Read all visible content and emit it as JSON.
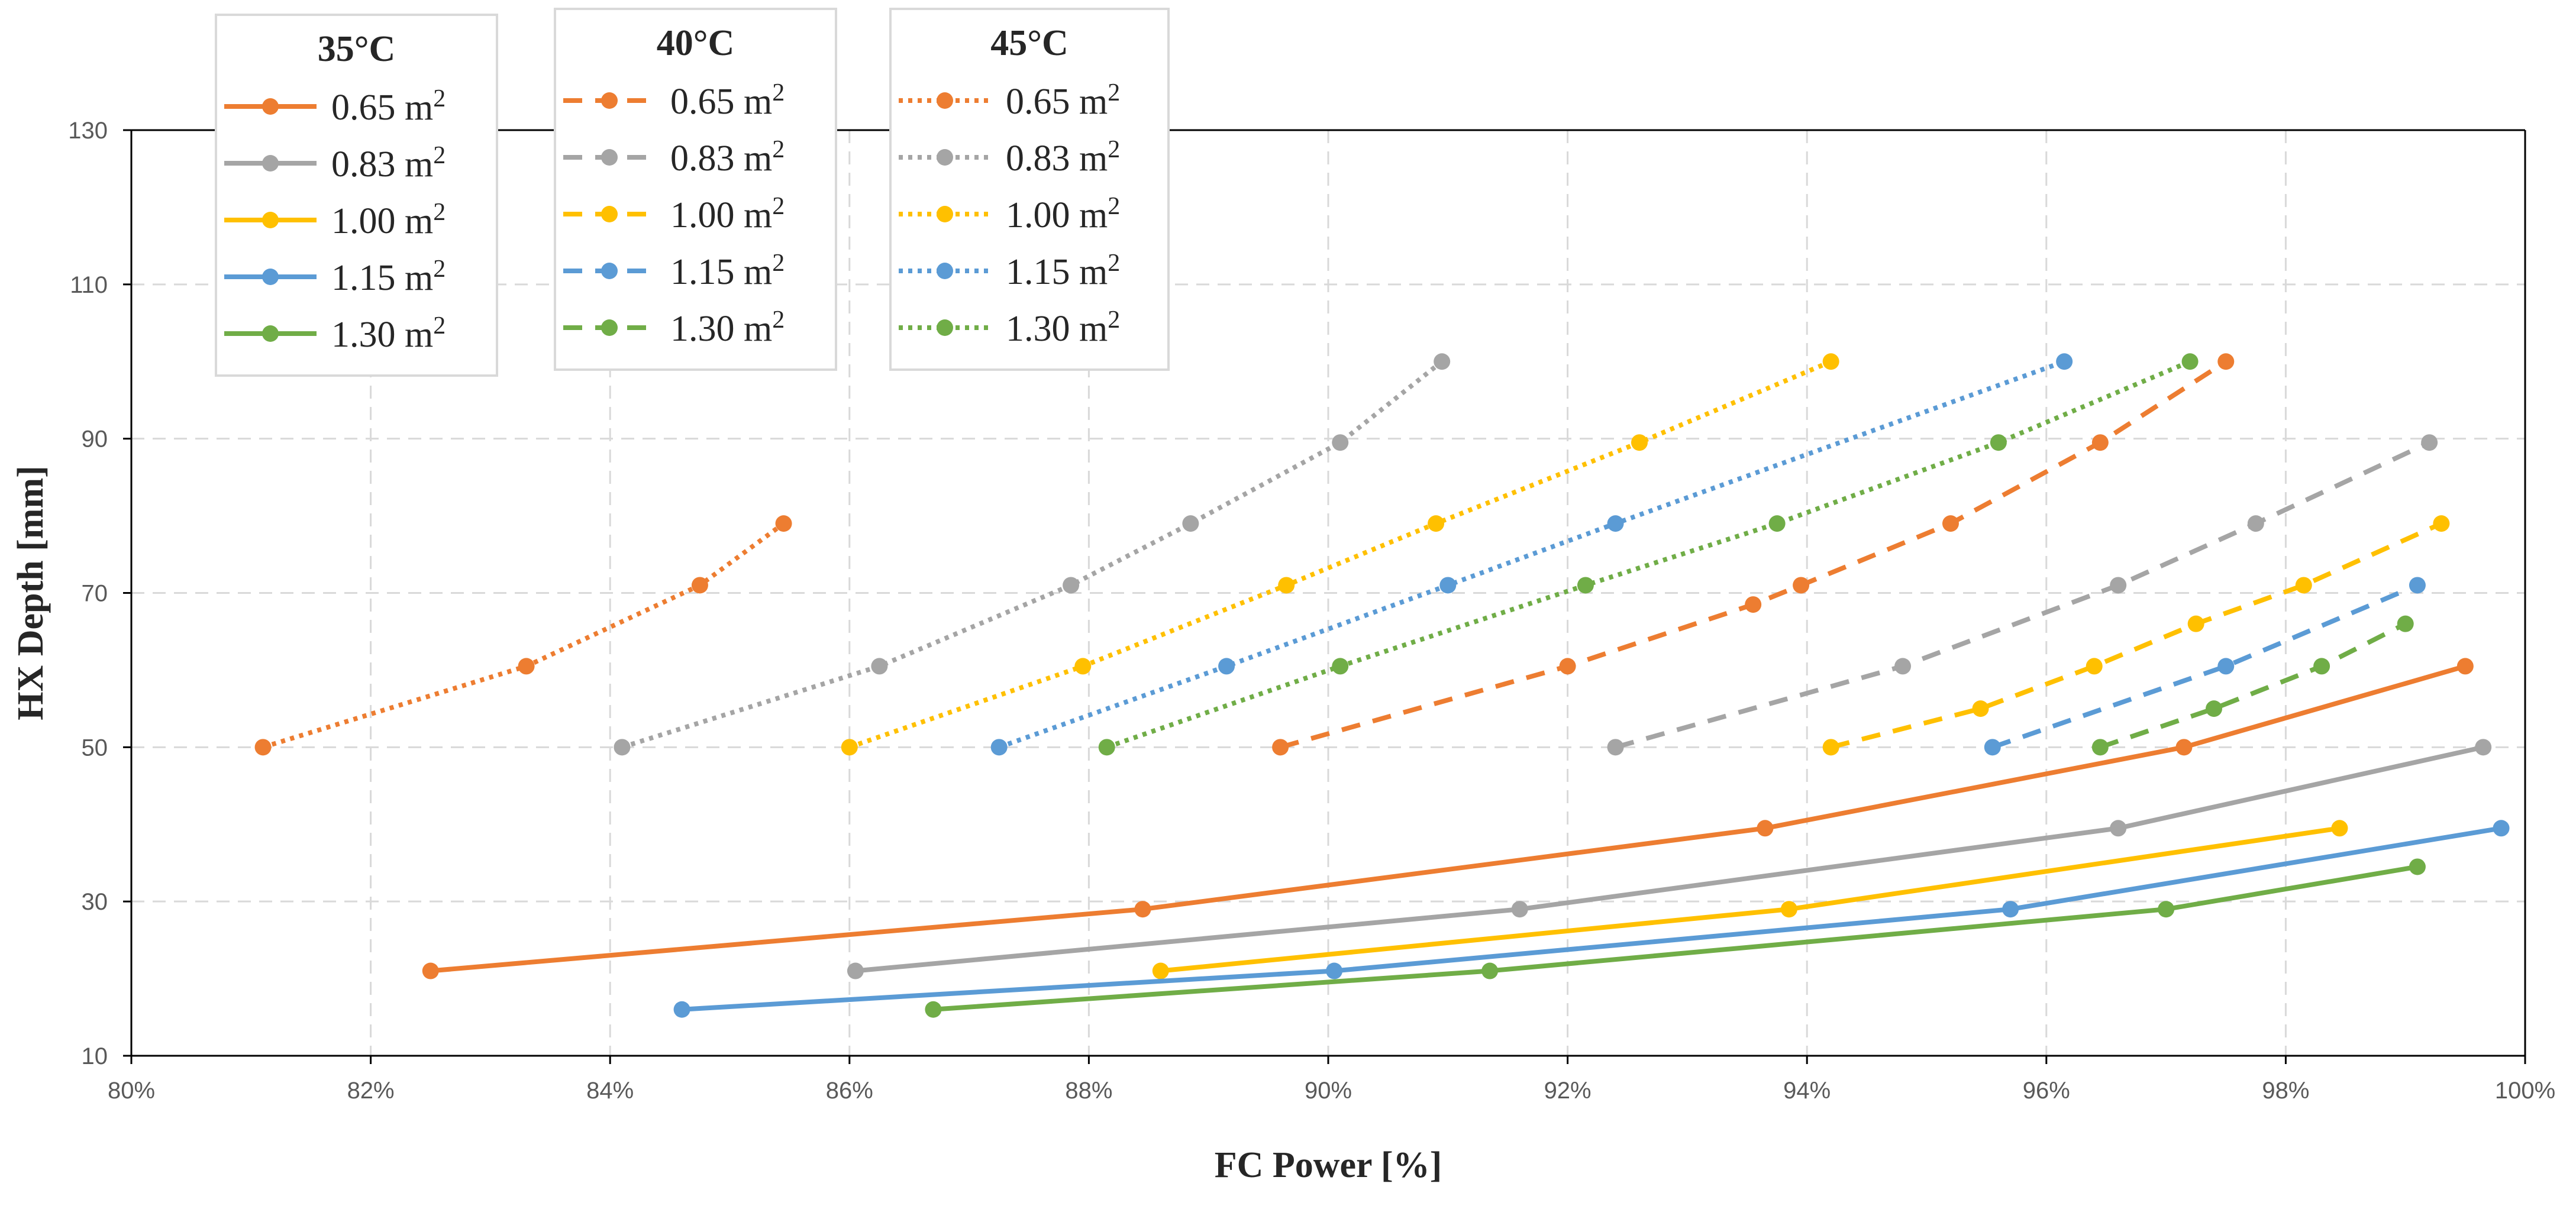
{
  "chart_data": {
    "type": "line",
    "title": "",
    "xlabel": "FC Power [%]",
    "ylabel": "HX Depth [mm]",
    "xlim": [
      80,
      100
    ],
    "ylim": [
      10,
      130
    ],
    "x_ticks": [
      80,
      82,
      84,
      86,
      88,
      90,
      92,
      94,
      96,
      98,
      100
    ],
    "x_tick_labels": [
      "80%",
      "82%",
      "84%",
      "86%",
      "88%",
      "90%",
      "92%",
      "94%",
      "96%",
      "98%",
      "100%"
    ],
    "y_ticks": [
      10,
      30,
      50,
      70,
      90,
      110,
      130
    ],
    "y_tick_labels": [
      "10",
      "30",
      "50",
      "70",
      "90",
      "110",
      "130"
    ],
    "grid": true,
    "legend_placement": "top-left",
    "colors": {
      "0.65": "#ED7D31",
      "0.83": "#A5A5A5",
      "1.00": "#FFC000",
      "1.15": "#5B9BD5",
      "1.30": "#70AD47"
    },
    "groups": [
      {
        "title": "35°C",
        "dash": "solid",
        "series": [
          {
            "name": "0.65 m",
            "sup": "2",
            "area": "0.65",
            "points": [
              [
                82.5,
                21
              ],
              [
                88.45,
                29
              ],
              [
                93.65,
                39.5
              ],
              [
                97.15,
                50
              ],
              [
                99.5,
                60.5
              ]
            ]
          },
          {
            "name": "0.83 m",
            "sup": "2",
            "area": "0.83",
            "points": [
              [
                86.05,
                21
              ],
              [
                91.6,
                29
              ],
              [
                96.6,
                39.5
              ],
              [
                99.65,
                50
              ]
            ]
          },
          {
            "name": "1.00 m",
            "sup": "2",
            "area": "1.00",
            "points": [
              [
                88.6,
                21
              ],
              [
                93.85,
                29
              ],
              [
                98.45,
                39.5
              ]
            ]
          },
          {
            "name": "1.15 m",
            "sup": "2",
            "area": "1.15",
            "points": [
              [
                84.6,
                16
              ],
              [
                90.05,
                21
              ],
              [
                95.7,
                29
              ],
              [
                99.8,
                39.5
              ]
            ]
          },
          {
            "name": "1.30 m",
            "sup": "2",
            "area": "1.30",
            "points": [
              [
                86.7,
                16
              ],
              [
                91.35,
                21
              ],
              [
                97.0,
                29
              ],
              [
                99.1,
                34.5
              ]
            ]
          }
        ]
      },
      {
        "title": "40°C",
        "dash": "dashed",
        "series": [
          {
            "name": "0.65 m",
            "sup": "2",
            "area": "0.65",
            "points": [
              [
                89.6,
                50
              ],
              [
                92.0,
                60.5
              ],
              [
                93.55,
                68.5
              ],
              [
                93.95,
                71
              ],
              [
                95.2,
                79
              ],
              [
                96.45,
                89.5
              ],
              [
                97.5,
                100
              ]
            ]
          },
          {
            "name": "0.83 m",
            "sup": "2",
            "area": "0.83",
            "points": [
              [
                92.4,
                50
              ],
              [
                94.8,
                60.5
              ],
              [
                96.6,
                71
              ],
              [
                97.75,
                79
              ],
              [
                99.2,
                89.5
              ]
            ]
          },
          {
            "name": "1.00 m",
            "sup": "2",
            "area": "1.00",
            "points": [
              [
                94.2,
                50
              ],
              [
                95.45,
                55
              ],
              [
                96.4,
                60.5
              ],
              [
                97.25,
                66
              ],
              [
                98.15,
                71
              ],
              [
                99.3,
                79
              ]
            ]
          },
          {
            "name": "1.15 m",
            "sup": "2",
            "area": "1.15",
            "points": [
              [
                95.55,
                50
              ],
              [
                97.5,
                60.5
              ],
              [
                99.1,
                71
              ]
            ]
          },
          {
            "name": "1.30 m",
            "sup": "2",
            "area": "1.30",
            "points": [
              [
                96.45,
                50
              ],
              [
                97.4,
                55
              ],
              [
                98.3,
                60.5
              ],
              [
                99.0,
                66
              ]
            ]
          }
        ]
      },
      {
        "title": "45°C",
        "dash": "dotted",
        "series": [
          {
            "name": "0.65 m",
            "sup": "2",
            "area": "0.65",
            "points": [
              [
                81.1,
                50
              ],
              [
                83.3,
                60.5
              ],
              [
                84.75,
                71
              ],
              [
                85.45,
                79
              ]
            ]
          },
          {
            "name": "0.83 m",
            "sup": "2",
            "area": "0.83",
            "points": [
              [
                84.1,
                50
              ],
              [
                86.25,
                60.5
              ],
              [
                87.85,
                71
              ],
              [
                88.85,
                79
              ],
              [
                90.1,
                89.5
              ],
              [
                90.95,
                100
              ]
            ]
          },
          {
            "name": "1.00 m",
            "sup": "2",
            "area": "1.00",
            "points": [
              [
                86.0,
                50
              ],
              [
                87.95,
                60.5
              ],
              [
                89.65,
                71
              ],
              [
                90.9,
                79
              ],
              [
                92.6,
                89.5
              ],
              [
                94.2,
                100
              ]
            ]
          },
          {
            "name": "1.15 m",
            "sup": "2",
            "area": "1.15",
            "points": [
              [
                87.25,
                50
              ],
              [
                89.15,
                60.5
              ],
              [
                91.0,
                71
              ],
              [
                92.4,
                79
              ],
              [
                96.15,
                100
              ]
            ]
          },
          {
            "name": "1.30 m",
            "sup": "2",
            "area": "1.30",
            "points": [
              [
                88.15,
                50
              ],
              [
                90.1,
                60.5
              ],
              [
                92.15,
                71
              ],
              [
                93.75,
                79
              ],
              [
                95.6,
                89.5
              ],
              [
                97.2,
                100
              ]
            ]
          }
        ]
      }
    ]
  }
}
